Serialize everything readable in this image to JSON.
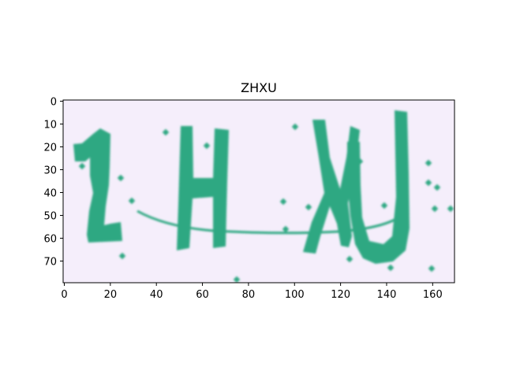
{
  "title": "ZHXU",
  "captcha": {
    "text": "ZHXU",
    "background_color": "#f5eefb",
    "glyph_color": "#2fa882",
    "noise_color": "#2fa882"
  },
  "axes": {
    "x_ticks": [
      "0",
      "20",
      "40",
      "60",
      "80",
      "100",
      "120",
      "140",
      "160"
    ],
    "y_ticks": [
      "0",
      "10",
      "20",
      "30",
      "40",
      "50",
      "60",
      "70"
    ],
    "x_range": [
      0,
      170
    ],
    "y_range": [
      80,
      0
    ]
  }
}
